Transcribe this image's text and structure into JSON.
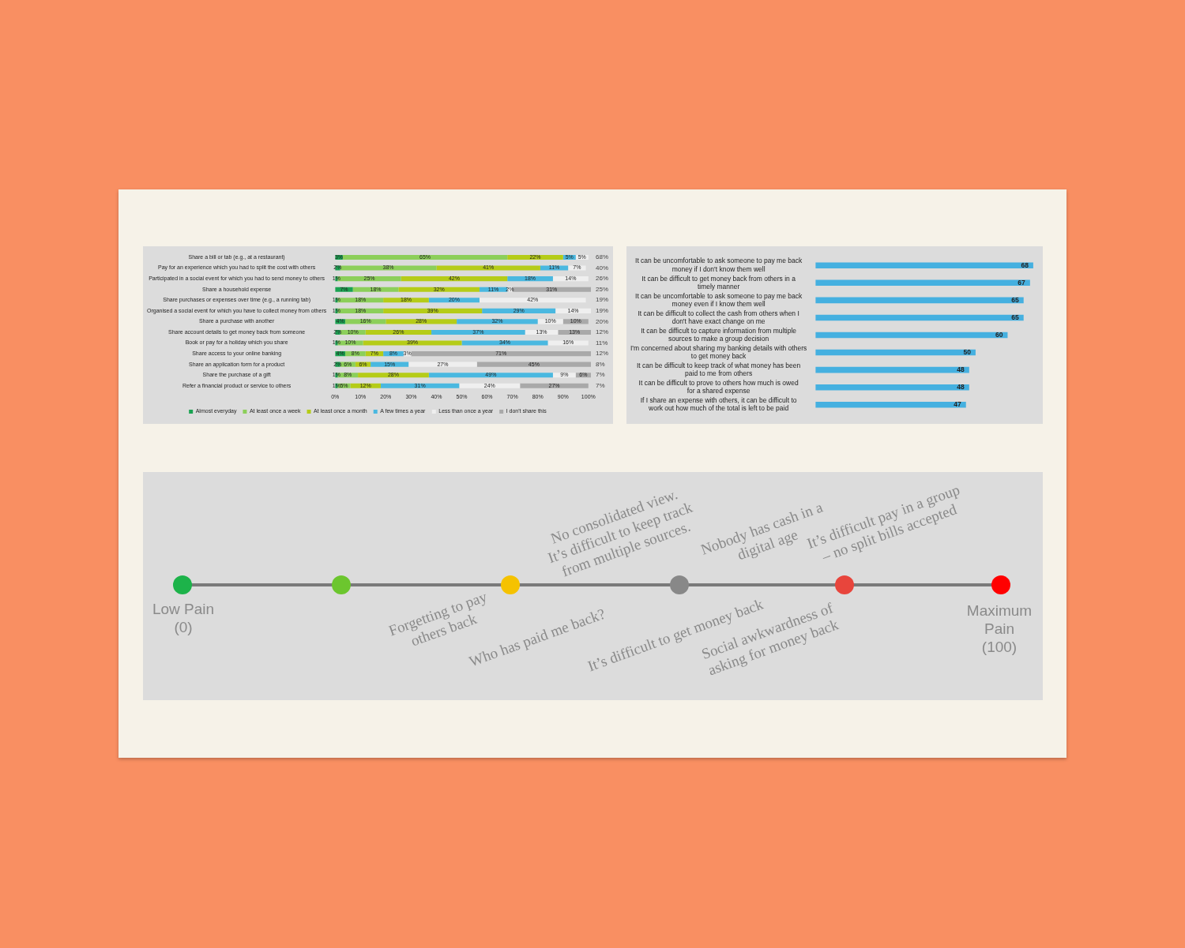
{
  "chart_data": [
    {
      "type": "bar",
      "orientation": "horizontal",
      "stacked": true,
      "legend": "bottom",
      "categories": [
        "Share a bill or tab (e.g., at a restaurant)",
        "Pay for an experience which you had to split the cost with others",
        "Participated in a social event for which you had to send money to others",
        "Share a household expense",
        "Share purchases or expenses over time (e.g., a running tab)",
        "Organised a social event for which you have to collect money from others",
        "Share a purchase with another",
        "Share account details to get money back from someone",
        "Book or pay for a holiday which you share",
        "Share access to your online banking",
        "Share an application form for a product",
        "Share the purchase of a gift",
        "Refer a financial product or service to others"
      ],
      "series": [
        {
          "name": "Almost everyday",
          "color": "#1aa352",
          "values": [
            3,
            2,
            1,
            7,
            1,
            1,
            4,
            2,
            1,
            4,
            2,
            1,
            1
          ],
          "value_labels": [
            "3%",
            "2%",
            "1%",
            "7%",
            "1%",
            "1%",
            "4%",
            "2%",
            "1%",
            "4%",
            "2%",
            "1%",
            "1%"
          ]
        },
        {
          "name": "At least once a week",
          "color": "#8ccf5a",
          "values": [
            65,
            38,
            25,
            18,
            18,
            18,
            16,
            10,
            10,
            8,
            6,
            8,
            5
          ],
          "value_labels": [
            "65%",
            "38%",
            "25%",
            "18%",
            "18%",
            "18%",
            "16%",
            "10%",
            "10%",
            "8%",
            "6%",
            "8%",
            "5%"
          ]
        },
        {
          "name": "At least once a month",
          "color": "#b5cc18",
          "values": [
            22,
            41,
            42,
            32,
            18,
            39,
            28,
            26,
            39,
            7,
            6,
            28,
            12
          ],
          "value_labels": [
            "22%",
            "41%",
            "42%",
            "32%",
            "18%",
            "39%",
            "28%",
            "26%",
            "39%",
            "7%",
            "6%",
            "28%",
            "12%"
          ]
        },
        {
          "name": "A few times a year",
          "color": "#4ab8e0",
          "values": [
            5,
            11,
            18,
            11,
            20,
            29,
            32,
            37,
            34,
            8,
            15,
            49,
            31
          ],
          "value_labels": [
            "5%",
            "11%",
            "18%",
            "11%",
            "20%",
            "29%",
            "32%",
            "37%",
            "34%",
            "8%",
            "15%",
            "49%",
            "31%"
          ]
        },
        {
          "name": "Less than once a year",
          "color": "#efefef",
          "values": [
            5,
            7,
            14,
            2,
            42,
            14,
            10,
            13,
            16,
            3,
            27,
            9,
            24
          ],
          "value_labels": [
            "5%",
            "7%",
            "14%",
            "2%",
            "42%",
            "14%",
            "10%",
            "13%",
            "16%",
            "3%",
            "27%",
            "9%",
            "24%"
          ]
        },
        {
          "name": "I don't share this",
          "color": "#a9a9a9",
          "values": [
            null,
            null,
            null,
            31,
            null,
            null,
            10,
            13,
            null,
            71,
            45,
            6,
            27
          ],
          "value_labels": [
            null,
            null,
            null,
            "31%",
            null,
            null,
            "10%",
            "13%",
            null,
            "71%",
            "45%",
            "6%",
            "27%"
          ]
        }
      ],
      "xlim": [
        0,
        101
      ],
      "xticks": [
        {
          "value": 0,
          "label": "0%"
        },
        {
          "value": 10,
          "label": "10%"
        },
        {
          "value": 20,
          "label": "20%"
        },
        {
          "value": 30,
          "label": "30%"
        },
        {
          "value": 40,
          "label": "40%"
        },
        {
          "value": 50,
          "label": "50%"
        },
        {
          "value": 60,
          "label": "60%"
        },
        {
          "value": 70,
          "label": "70%"
        },
        {
          "value": 80,
          "label": "80%"
        },
        {
          "value": 90,
          "label": "90%"
        },
        {
          "value": 100,
          "label": "100%"
        }
      ],
      "annotations": [
        "68%",
        "40%",
        "26%",
        "25%",
        "19%",
        "19%",
        "20%",
        "12%",
        "11%",
        "12%",
        "8%",
        "7%",
        "7%"
      ]
    },
    {
      "type": "bar",
      "orientation": "horizontal",
      "data_labels": true,
      "color": "#45b0e0",
      "categories": [
        "It can be uncomfortable to ask someone to pay me back money if I don't know them well",
        "It can be difficult to get money back from others in a timely manner",
        "It can be uncomfortable to ask someone to pay me back money even if I know them well",
        "It can be difficult to collect the cash from others when I don't have exact change on me",
        "It can be difficult to capture information from multiple sources to make a group decision",
        "I'm concerned about sharing my banking details with others to get money back",
        "It can be difficult to keep track of what money has been paid to me from others",
        "It can be difficult to prove to others how much is owed for a shared expense",
        "If I share an expense with others, it can be difficult to work out how much of the total is left to be paid"
      ],
      "values": [
        68,
        67,
        65,
        65,
        60,
        50,
        48,
        48,
        47
      ]
    },
    {
      "type": "other",
      "annotations": [
        "Low Pain\n(0)",
        "Forgetting to pay\nothers back",
        "No consolidated view.\nIt’s difficult to keep track\nfrom multiple sources.",
        "Who has paid me back?",
        "Nobody has cash in a\ndigital age",
        "It’s difficult to get money back",
        "Social awkwardness of\nasking for money back",
        "It’s difficult pay in a group\n– no split bills accepted",
        "Maximum\nPain\n(100)"
      ]
    }
  ]
}
